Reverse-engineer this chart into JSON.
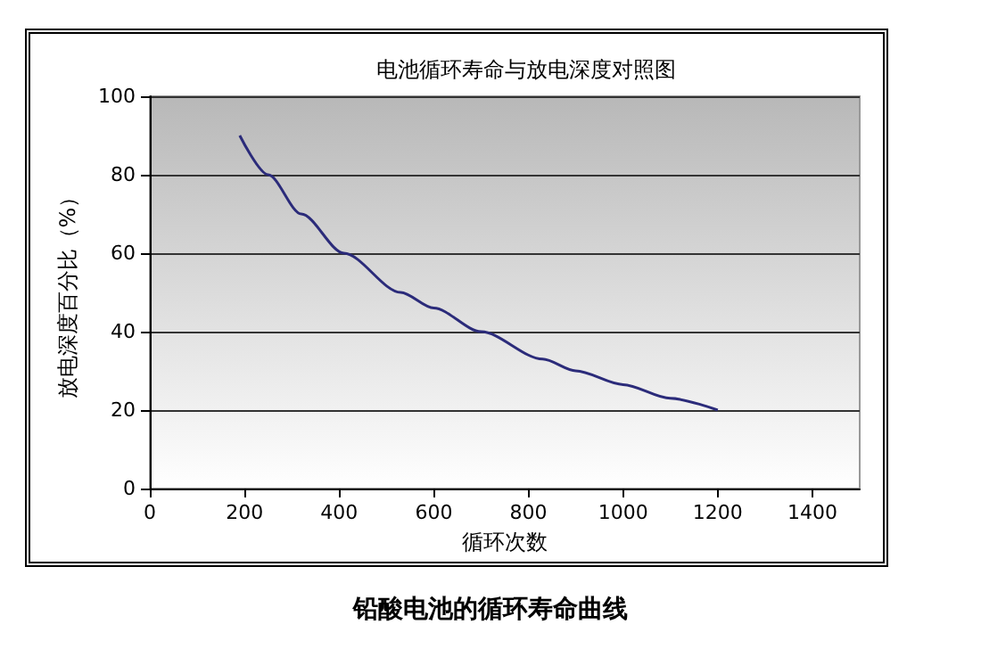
{
  "chart_data": {
    "type": "line",
    "title": "电池循环寿命与放电深度对照图",
    "xlabel": "循环次数",
    "ylabel": "放电深度百分比（%）",
    "annotations": [
      "铅酸电池的循环寿命曲线"
    ],
    "series": [
      {
        "color": "#2b2b7a",
        "x": [
          190,
          250,
          320,
          410,
          530,
          600,
          700,
          830,
          900,
          1000,
          1100,
          1200
        ],
        "values": [
          90,
          80,
          70,
          60,
          50,
          46,
          40,
          33,
          30,
          26.5,
          23,
          20
        ]
      }
    ],
    "xlim": [
      0,
      1500
    ],
    "xticks": [
      0,
      200,
      400,
      600,
      800,
      1000,
      1200,
      1400
    ],
    "ylim": [
      0,
      100
    ],
    "yticks": [
      0,
      20,
      40,
      60,
      80,
      100
    ],
    "grid": "y",
    "marker": "none",
    "line_style": "solid"
  }
}
